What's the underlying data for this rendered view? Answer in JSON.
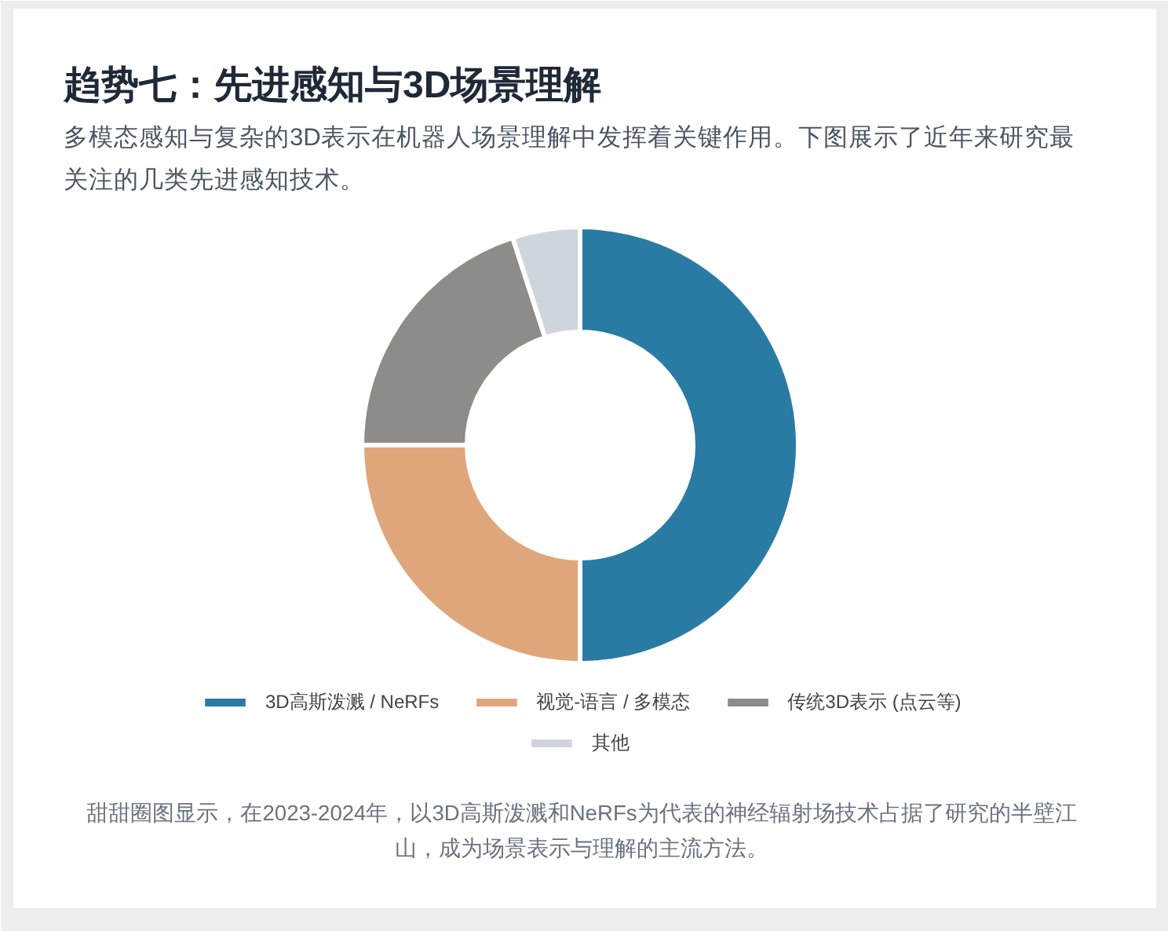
{
  "chart_data": {
    "type": "donut",
    "title": "趋势七：先进感知与3D场景理解",
    "subtitle": "多模态感知与复杂的3D表示在机器人场景理解中发挥着关键作用。下图展示了近年来研究最关注的几类先进感知技术。",
    "categories": [
      "3D高斯泼溅 / NeRFs",
      "视觉-语言 / 多模态",
      "传统3D表示 (点云等)",
      "其他"
    ],
    "values": [
      50,
      25,
      20,
      5
    ],
    "colors": [
      "#2a7ba4",
      "#dfa67b",
      "#8d8c88",
      "#cfd5dd"
    ],
    "legend": "bottom",
    "annotations": [
      "甜甜圈图显示，在2023-2024年，以3D高斯泼溅和NeRFs为代表的神经辐射场技术占据了研究的半壁江山，成为场景表示与理解的主流方法。"
    ]
  }
}
